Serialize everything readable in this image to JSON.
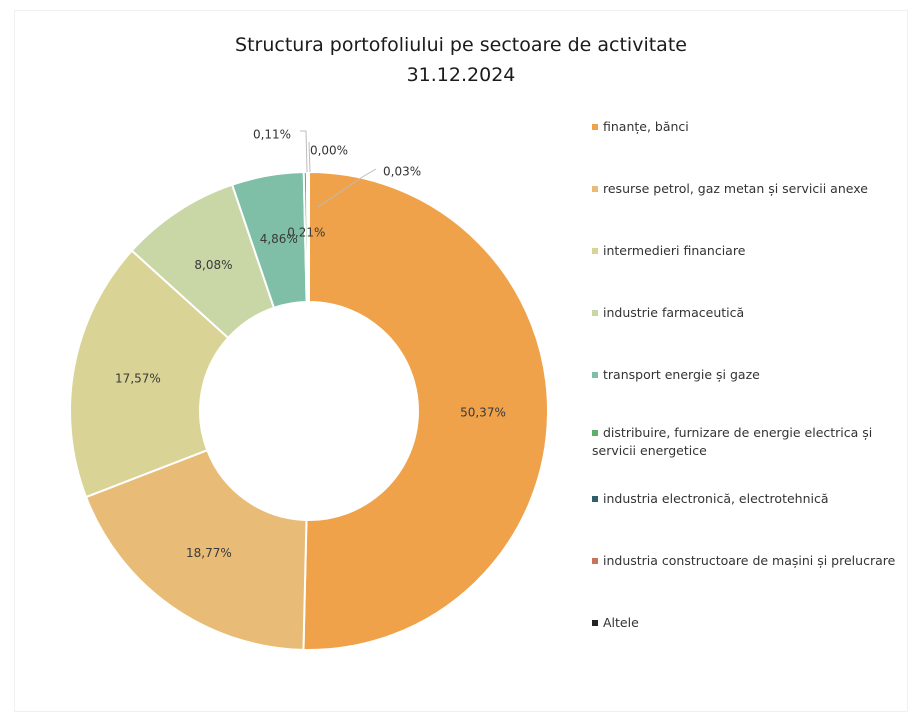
{
  "chart_data": {
    "type": "pie",
    "title": "Structura portofoliului pe sectoare de activitate",
    "subtitle": "31.12.2024",
    "donut": true,
    "legend_position": "right",
    "slices": [
      {
        "label": "finanțe, bănci",
        "value": 50.37,
        "display": "50,37%",
        "color": "#efa249"
      },
      {
        "label": "resurse petrol, gaz metan și servicii anexe",
        "value": 18.77,
        "display": "18,77%",
        "color": "#e8bb76"
      },
      {
        "label": "intermedieri financiare",
        "value": 17.57,
        "display": "17,57%",
        "color": "#d9d495"
      },
      {
        "label": "industrie farmaceutică",
        "value": 8.08,
        "display": "8,08%",
        "color": "#c9d6a6"
      },
      {
        "label": "transport energie și gaze",
        "value": 4.86,
        "display": "4,86%",
        "color": "#7fbfa8"
      },
      {
        "label": "distribuire, furnizare de energie electrica și servicii energetice",
        "value": 0.21,
        "display": "0,21%",
        "color": "#5fae6b"
      },
      {
        "label": "industria electronică, electrotehnică",
        "value": 0.11,
        "display": "0,11%",
        "color": "#2f5f6a"
      },
      {
        "label": "industria constructoare de mașini și prelucrare",
        "value": 0.0,
        "display": "0,00%",
        "color": "#c8745a"
      },
      {
        "label": "Altele",
        "value": 0.03,
        "display": "0,03%",
        "color": "#222222"
      }
    ]
  }
}
